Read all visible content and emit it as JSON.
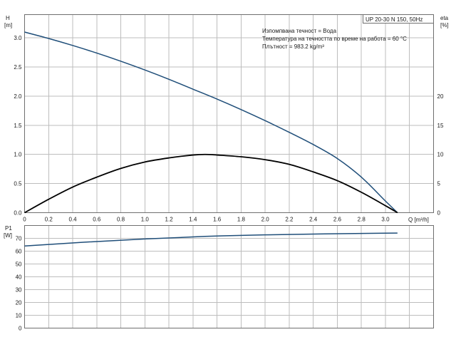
{
  "chart_data": [
    {
      "type": "line",
      "name": "head-efficiency",
      "xlabel": "Q [m³/h]",
      "ylabel_left": [
        "H",
        "[m]"
      ],
      "ylabel_right": [
        "eta",
        "[%]"
      ],
      "xlim": [
        0,
        3.4
      ],
      "ylim_left": [
        0,
        3.4
      ],
      "ylim_right": [
        0,
        34
      ],
      "x_ticks": [
        "0",
        "0.2",
        "0.4",
        "0.6",
        "0.8",
        "1.0",
        "1.2",
        "1.4",
        "1.6",
        "1.8",
        "2.0",
        "2.2",
        "2.4",
        "2.6",
        "2.8",
        "3.0"
      ],
      "y_ticks_left": [
        "0.0",
        "0.5",
        "1.0",
        "1.5",
        "2.0",
        "2.5",
        "3.0"
      ],
      "y_ticks_right": [
        "0",
        "5",
        "10",
        "15",
        "20"
      ],
      "series": [
        {
          "axis": "left",
          "color": "#1f4e79",
          "x": [
            0,
            0.2,
            0.4,
            0.6,
            0.8,
            1.0,
            1.2,
            1.4,
            1.6,
            1.8,
            2.0,
            2.2,
            2.4,
            2.6,
            2.8,
            3.0,
            3.1
          ],
          "y": [
            3.1,
            2.99,
            2.87,
            2.74,
            2.6,
            2.45,
            2.29,
            2.12,
            1.95,
            1.77,
            1.58,
            1.38,
            1.17,
            0.93,
            0.61,
            0.2,
            0
          ]
        },
        {
          "axis": "right",
          "color": "#000000",
          "x": [
            0,
            0.2,
            0.4,
            0.6,
            0.8,
            1.0,
            1.2,
            1.4,
            1.5,
            1.6,
            1.8,
            2.0,
            2.2,
            2.4,
            2.6,
            2.8,
            3.0,
            3.1
          ],
          "y": [
            0,
            2.3,
            4.4,
            6.1,
            7.6,
            8.7,
            9.4,
            9.9,
            10.0,
            9.9,
            9.6,
            9.1,
            8.3,
            7.0,
            5.5,
            3.5,
            1.2,
            0
          ]
        }
      ],
      "legend_box": "UP 20-30 N 150, 50Hz",
      "info_lines": [
        "Изпомпвана течност = Вода",
        "Температура на течността по време на работа = 60 °C",
        "Плътност = 983.2 kg/m³"
      ],
      "grid": true
    },
    {
      "type": "line",
      "name": "power",
      "ylabel": [
        "P1",
        "[W]"
      ],
      "xlim": [
        0,
        3.4
      ],
      "ylim": [
        0,
        80
      ],
      "y_ticks": [
        "0",
        "10",
        "20",
        "30",
        "40",
        "50",
        "60",
        "70"
      ],
      "series": [
        {
          "color": "#1f4e79",
          "x": [
            0,
            0.5,
            1.0,
            1.5,
            2.0,
            2.5,
            3.0,
            3.1
          ],
          "y": [
            64,
            67,
            69.5,
            71.5,
            72.7,
            73.5,
            74,
            74.1
          ]
        }
      ],
      "grid": true
    }
  ]
}
